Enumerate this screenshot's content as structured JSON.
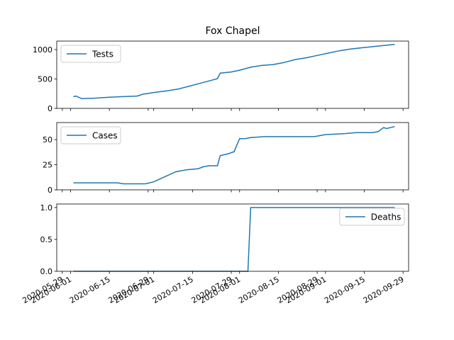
{
  "chart_data": [
    {
      "type": "line",
      "title": "Fox Chapel",
      "x": [
        "2020-06-02",
        "2020-06-03",
        "2020-06-05",
        "2020-06-10",
        "2020-06-15",
        "2020-06-20",
        "2020-06-25",
        "2020-06-27",
        "2020-07-01",
        "2020-07-06",
        "2020-07-10",
        "2020-07-14",
        "2020-07-18",
        "2020-07-22",
        "2020-07-24",
        "2020-07-25",
        "2020-07-29",
        "2020-08-01",
        "2020-08-05",
        "2020-08-09",
        "2020-08-13",
        "2020-08-17",
        "2020-08-21",
        "2020-08-25",
        "2020-08-29",
        "2020-09-02",
        "2020-09-06",
        "2020-09-10",
        "2020-09-14",
        "2020-09-18",
        "2020-09-22",
        "2020-09-26"
      ],
      "series": [
        {
          "name": "Tests",
          "color": "#1f77b4",
          "values": [
            200,
            210,
            165,
            175,
            190,
            200,
            210,
            240,
            270,
            300,
            330,
            380,
            430,
            480,
            505,
            600,
            620,
            650,
            700,
            730,
            745,
            780,
            830,
            860,
            900,
            940,
            980,
            1010,
            1030,
            1050,
            1070,
            1090
          ]
        }
      ],
      "ylim": [
        0,
        1145
      ],
      "yticks": [
        0,
        500,
        1000
      ],
      "legend": "upper left"
    },
    {
      "type": "line",
      "x": [
        "2020-06-02",
        "2020-06-18",
        "2020-06-20",
        "2020-06-28",
        "2020-07-01",
        "2020-07-05",
        "2020-07-09",
        "2020-07-13",
        "2020-07-17",
        "2020-07-19",
        "2020-07-21",
        "2020-07-24",
        "2020-07-25",
        "2020-07-28",
        "2020-07-30",
        "2020-08-01",
        "2020-08-03",
        "2020-08-05",
        "2020-08-10",
        "2020-08-28",
        "2020-09-01",
        "2020-09-08",
        "2020-09-12",
        "2020-09-18",
        "2020-09-20",
        "2020-09-22",
        "2020-09-23",
        "2020-09-26"
      ],
      "series": [
        {
          "name": "Cases",
          "color": "#1f77b4",
          "values": [
            7,
            7,
            6,
            6,
            8,
            13,
            18,
            20,
            21,
            23,
            24,
            24,
            34,
            36,
            38,
            51,
            51,
            52,
            53,
            53,
            55,
            56,
            57,
            57,
            58,
            62,
            61,
            63
          ]
        }
      ],
      "ylim": [
        0,
        67
      ],
      "yticks": [
        0,
        25,
        50
      ],
      "legend": "upper left"
    },
    {
      "type": "line",
      "x": [
        "2020-06-02",
        "2020-08-04",
        "2020-08-05",
        "2020-09-26"
      ],
      "series": [
        {
          "name": "Deaths",
          "color": "#1f77b4",
          "values": [
            0,
            0,
            1,
            1
          ]
        }
      ],
      "ylim": [
        0,
        1.055
      ],
      "yticks": [
        {
          "value": 0,
          "label": "0.0"
        },
        0.5,
        {
          "value": 1,
          "label": "1.0"
        }
      ],
      "legend": "upper right",
      "xlim": [
        "2020-05-27",
        "2020-10-01"
      ],
      "xticks": [
        "2020-05-29",
        "2020-06-01",
        "2020-06-15",
        "2020-06-29",
        "2020-07-01",
        "2020-07-15",
        "2020-07-29",
        "2020-08-01",
        "2020-08-15",
        "2020-08-29",
        "2020-09-01",
        "2020-09-15",
        "2020-09-29"
      ]
    }
  ]
}
